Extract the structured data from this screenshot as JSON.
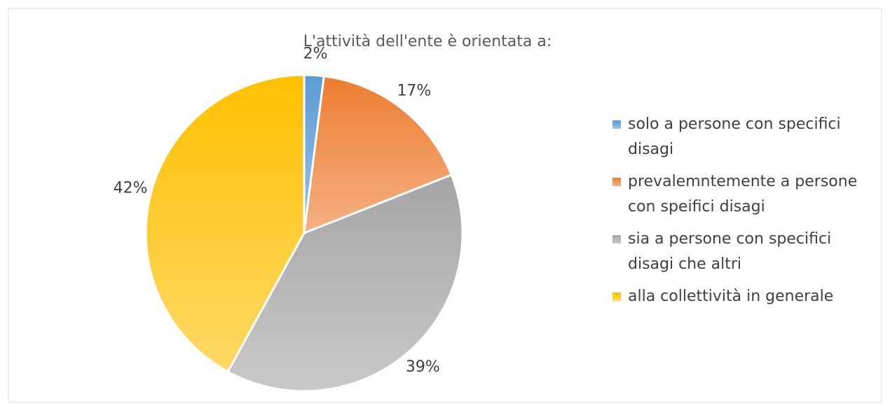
{
  "chart_data": {
    "type": "pie",
    "title": "L'attività dell'ente è orientata a:",
    "categories": [
      "solo a persone con specifici disagi",
      "prevalemntemente a persone con speifici disagi",
      "sia a persone con specifici disagi che altri",
      "alla collettività in generale"
    ],
    "values": [
      2,
      17,
      39,
      42
    ],
    "value_labels": [
      "2%",
      "17%",
      "39%",
      "42%"
    ],
    "colors": [
      "#5b9bd5",
      "#ed7d31",
      "#a5a5a5",
      "#ffc000"
    ],
    "legend": "right"
  }
}
